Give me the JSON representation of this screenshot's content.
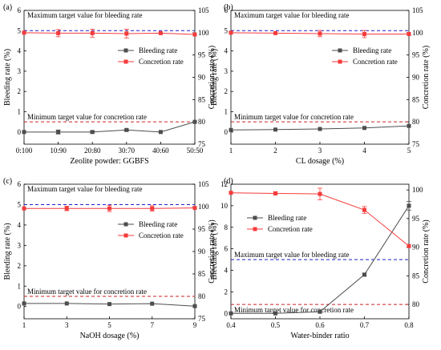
{
  "chart_data": [
    {
      "type": "line",
      "panel_label": "(a)",
      "xlabel": "Zeolite powder: GGBFS",
      "ylabel": "Bleeding rate (%)",
      "y2label": "Concretion rate (%)",
      "categories": [
        "0:100",
        "10:90",
        "20:80",
        "30:70",
        "40:60",
        "50:50"
      ],
      "ylim": [
        -0.6,
        6
      ],
      "yticks": [
        "0",
        "1",
        "2",
        "3",
        "4",
        "5",
        "6"
      ],
      "y2lim": [
        75,
        105
      ],
      "y2ticks": [
        "75",
        "80",
        "85",
        "90",
        "95",
        "100",
        "105"
      ],
      "series": [
        {
          "name": "Bleeding rate",
          "axis": "left",
          "color": "#4d4d4d",
          "marker": "square",
          "values": [
            0.0,
            0.0,
            0.0,
            0.1,
            0.0,
            0.5
          ],
          "errors": [
            0,
            0.1,
            0.05,
            0.05,
            0,
            0
          ]
        },
        {
          "name": "Concretion rate",
          "axis": "right",
          "color": "#f53b3b",
          "marker": "square",
          "values": [
            100.0,
            99.9,
            99.9,
            99.8,
            99.9,
            99.6
          ],
          "errors": [
            0,
            0.8,
            0.9,
            1.0,
            0,
            0
          ]
        }
      ],
      "references": [
        {
          "label": "Maximum target value for bleeding rate",
          "axis": "left",
          "value": 5,
          "color": "#1f1fcc"
        },
        {
          "label": "Minimum target value for concretion rate",
          "axis": "right",
          "value": 80,
          "color": "#cc2222"
        }
      ],
      "legend_position": "right",
      "max_label_position": "top",
      "min_label_position": "above"
    },
    {
      "type": "line",
      "panel_label": "(b)",
      "xlabel": "CL dosage (%)",
      "ylabel": "Bleeding rate (%)",
      "y2label": "Concretion rate (%)",
      "categories": [
        "1",
        "2",
        "3",
        "4",
        "5"
      ],
      "ylim": [
        -0.6,
        6
      ],
      "yticks": [
        "0",
        "1",
        "2",
        "3",
        "4",
        "5",
        "6"
      ],
      "y2lim": [
        75,
        105
      ],
      "y2ticks": [
        "75",
        "80",
        "85",
        "90",
        "95",
        "100",
        "105"
      ],
      "series": [
        {
          "name": "Bleeding rate",
          "axis": "left",
          "color": "#4d4d4d",
          "marker": "square",
          "values": [
            0.1,
            0.12,
            0.15,
            0.2,
            0.3
          ],
          "errors": [
            0,
            0,
            0,
            0,
            0
          ]
        },
        {
          "name": "Concretion rate",
          "axis": "right",
          "color": "#f53b3b",
          "marker": "square",
          "values": [
            100.0,
            99.9,
            99.8,
            99.7,
            99.7
          ],
          "errors": [
            0,
            0,
            0.7,
            0.8,
            0
          ]
        }
      ],
      "references": [
        {
          "label": "Maximum target value for bleeding rate",
          "axis": "left",
          "value": 5,
          "color": "#1f1fcc"
        },
        {
          "label": "Minimum target value for concretion rate",
          "axis": "right",
          "value": 80,
          "color": "#cc2222"
        }
      ],
      "legend_position": "right",
      "max_label_position": "top",
      "min_label_position": "above"
    },
    {
      "type": "line",
      "panel_label": "(c)",
      "xlabel": "NaOH dosage (%)",
      "ylabel": "Bleeding rate (%)",
      "y2label": "Concretion rate (%)",
      "categories": [
        "1",
        "3",
        "5",
        "7",
        "9"
      ],
      "ylim": [
        -0.6,
        6
      ],
      "yticks": [
        "0",
        "1",
        "2",
        "3",
        "4",
        "5",
        "6"
      ],
      "y2lim": [
        75,
        105
      ],
      "y2ticks": [
        "75",
        "80",
        "85",
        "90",
        "95",
        "100",
        "105"
      ],
      "series": [
        {
          "name": "Bleeding rate",
          "axis": "left",
          "color": "#4d4d4d",
          "marker": "square",
          "values": [
            0.15,
            0.15,
            0.12,
            0.14,
            0.02
          ],
          "errors": [
            0,
            0,
            0,
            0,
            0
          ]
        },
        {
          "name": "Concretion rate",
          "axis": "right",
          "color": "#f53b3b",
          "marker": "square",
          "values": [
            99.6,
            99.6,
            99.6,
            99.6,
            99.7
          ],
          "errors": [
            0,
            0.5,
            0.7,
            0.6,
            0
          ]
        }
      ],
      "references": [
        {
          "label": "Maximum target value for bleeding rate",
          "axis": "left",
          "value": 5,
          "color": "#1f1fcc"
        },
        {
          "label": "Minimum target value for concretion rate",
          "axis": "right",
          "value": 80,
          "color": "#cc2222"
        }
      ],
      "legend_position": "right",
      "max_label_position": "top",
      "min_label_position": "above"
    },
    {
      "type": "line",
      "panel_label": "(d)",
      "xlabel": "Water-binder ratio",
      "ylabel": "Bleeding rate (%)",
      "y2label": "Concretion rate (%)",
      "categories": [
        "0.4",
        "0.5",
        "0.6",
        "0.7",
        "0.8"
      ],
      "ylim": [
        -0.5,
        12
      ],
      "yticks": [
        "0",
        "2",
        "4",
        "6",
        "8",
        "10",
        "12"
      ],
      "y2lim": [
        77.5,
        101
      ],
      "y2ticks": [
        "80",
        "85",
        "90",
        "95",
        "100"
      ],
      "series": [
        {
          "name": "Bleeding rate",
          "axis": "left",
          "color": "#4d4d4d",
          "marker": "square",
          "values": [
            0.0,
            0.0,
            0.15,
            3.6,
            10.0
          ],
          "errors": [
            0,
            0,
            0,
            0.15,
            0.4
          ]
        },
        {
          "name": "Concretion rate",
          "axis": "right",
          "color": "#f53b3b",
          "marker": "square",
          "values": [
            99.5,
            99.4,
            99.3,
            96.5,
            90.2
          ],
          "errors": [
            0,
            0.3,
            1.0,
            0.6,
            0
          ]
        }
      ],
      "references": [
        {
          "label": "Maximum target value for bleeding rate",
          "axis": "left",
          "value": 5,
          "color": "#1f1fcc"
        },
        {
          "label": "Minimum target value for concretion rate",
          "axis": "right",
          "value": 80,
          "color": "#cc2222"
        }
      ],
      "legend_position": "center-left",
      "max_label_position": "above",
      "min_label_position": "below"
    }
  ]
}
